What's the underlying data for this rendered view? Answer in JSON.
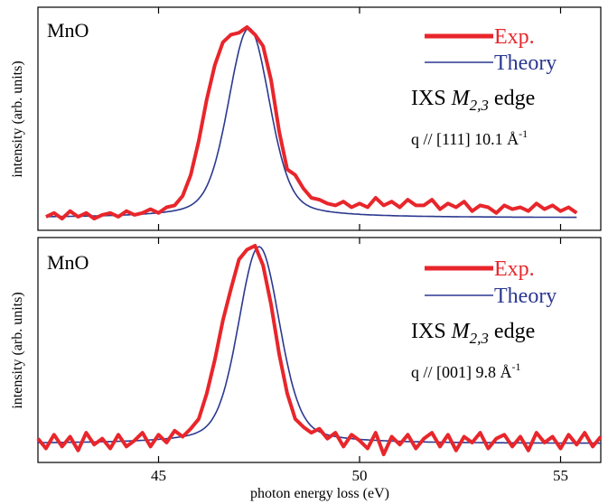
{
  "chart_data": [
    {
      "type": "line",
      "panel_label": "MnO",
      "annotation": {
        "prefix": "IXS ",
        "symbol": "M",
        "subscript": "2,3",
        "suffix": " edge"
      },
      "q_label": {
        "prefix": "q // [111] 10.1 ",
        "unit_main": "Å",
        "unit_sup": "-1"
      },
      "ylabel": "intensity (arb. units)",
      "xlim": [
        42,
        56
      ],
      "ylim": [
        -0.1,
        1.05
      ],
      "legend": "top-right",
      "series": [
        {
          "name": "Exp.",
          "color": "#e8262b",
          "kind": "experiment",
          "x": [
            42.2,
            42.4,
            42.6,
            42.8,
            43.0,
            43.2,
            43.4,
            43.6,
            43.8,
            44.0,
            44.2,
            44.4,
            44.6,
            44.8,
            45.0,
            45.2,
            45.4,
            45.6,
            45.8,
            46.0,
            46.2,
            46.4,
            46.6,
            46.8,
            47.0,
            47.2,
            47.4,
            47.6,
            47.8,
            48.0,
            48.2,
            48.4,
            48.6,
            48.8,
            49.0,
            49.2,
            49.4,
            49.6,
            49.8,
            50.0,
            50.2,
            50.4,
            50.6,
            50.8,
            51.0,
            51.2,
            51.4,
            51.6,
            51.8,
            52.0,
            52.2,
            52.4,
            52.6,
            52.8,
            53.0,
            53.2,
            53.4,
            53.6,
            53.8,
            54.0,
            54.2,
            54.4,
            54.6,
            54.8,
            55.0,
            55.2,
            55.4
          ],
          "y": [
            0.0,
            0.02,
            -0.01,
            0.03,
            0.0,
            0.02,
            -0.01,
            0.01,
            0.02,
            0.0,
            0.03,
            0.01,
            0.02,
            0.04,
            0.02,
            0.05,
            0.06,
            0.11,
            0.22,
            0.4,
            0.62,
            0.8,
            0.92,
            0.96,
            0.97,
            1.0,
            0.96,
            0.9,
            0.72,
            0.45,
            0.25,
            0.22,
            0.15,
            0.1,
            0.09,
            0.07,
            0.06,
            0.08,
            0.05,
            0.07,
            0.05,
            0.1,
            0.06,
            0.08,
            0.05,
            0.09,
            0.06,
            0.06,
            0.09,
            0.04,
            0.07,
            0.05,
            0.08,
            0.03,
            0.06,
            0.05,
            0.02,
            0.06,
            0.04,
            0.05,
            0.03,
            0.07,
            0.04,
            0.06,
            0.03,
            0.05,
            0.02
          ]
        },
        {
          "name": "Theory",
          "color": "#2b3990",
          "kind": "model",
          "peak": {
            "center": 47.25,
            "height": 1.0,
            "width": 0.8
          }
        }
      ]
    },
    {
      "type": "line",
      "panel_label": "MnO",
      "annotation": {
        "prefix": "IXS ",
        "symbol": "M",
        "subscript": "2,3",
        "suffix": " edge"
      },
      "q_label": {
        "prefix": "q // [001] 9.8 ",
        "unit_main": "Å",
        "unit_sup": "-1"
      },
      "ylabel": "intensity (arb. units)",
      "xlabel": "photon energy loss (eV)",
      "xlim": [
        42,
        56
      ],
      "ylim": [
        -0.1,
        1.05
      ],
      "xticks": [
        45,
        50,
        55
      ],
      "legend": "top-right",
      "series": [
        {
          "name": "Exp.",
          "color": "#e8262b",
          "kind": "experiment",
          "x": [
            42.0,
            42.2,
            42.4,
            42.6,
            42.8,
            43.0,
            43.2,
            43.4,
            43.6,
            43.8,
            44.0,
            44.2,
            44.4,
            44.6,
            44.8,
            45.0,
            45.2,
            45.4,
            45.6,
            45.8,
            46.0,
            46.2,
            46.4,
            46.6,
            46.8,
            47.0,
            47.2,
            47.4,
            47.6,
            47.8,
            48.0,
            48.2,
            48.4,
            48.6,
            48.8,
            49.0,
            49.2,
            49.4,
            49.6,
            49.8,
            50.0,
            50.2,
            50.4,
            50.6,
            50.8,
            51.0,
            51.2,
            51.4,
            51.6,
            51.8,
            52.0,
            52.2,
            52.4,
            52.6,
            52.8,
            53.0,
            53.2,
            53.4,
            53.6,
            53.8,
            54.0,
            54.2,
            54.4,
            54.6,
            54.8,
            55.0,
            55.2,
            55.4,
            55.6,
            55.8,
            56.0
          ],
          "y": [
            0.02,
            -0.03,
            0.04,
            -0.02,
            0.03,
            -0.04,
            0.05,
            -0.01,
            0.02,
            -0.03,
            0.04,
            -0.02,
            0.01,
            0.05,
            -0.02,
            0.04,
            0.0,
            0.06,
            0.03,
            0.07,
            0.12,
            0.25,
            0.42,
            0.62,
            0.78,
            0.93,
            0.98,
            1.0,
            0.9,
            0.7,
            0.45,
            0.25,
            0.12,
            0.08,
            0.05,
            0.07,
            0.02,
            0.05,
            -0.02,
            0.04,
            0.01,
            -0.03,
            0.05,
            -0.06,
            0.03,
            -0.01,
            0.04,
            -0.03,
            0.02,
            0.05,
            -0.02,
            0.04,
            -0.04,
            0.03,
            0.0,
            0.05,
            -0.03,
            0.02,
            0.04,
            -0.02,
            0.03,
            -0.04,
            0.05,
            0.0,
            0.03,
            -0.03,
            0.04,
            -0.01,
            0.05,
            -0.02,
            0.03
          ]
        },
        {
          "name": "Theory",
          "color": "#2b3990",
          "kind": "model",
          "peak": {
            "center": 47.5,
            "height": 1.0,
            "width": 0.8
          }
        }
      ]
    }
  ]
}
